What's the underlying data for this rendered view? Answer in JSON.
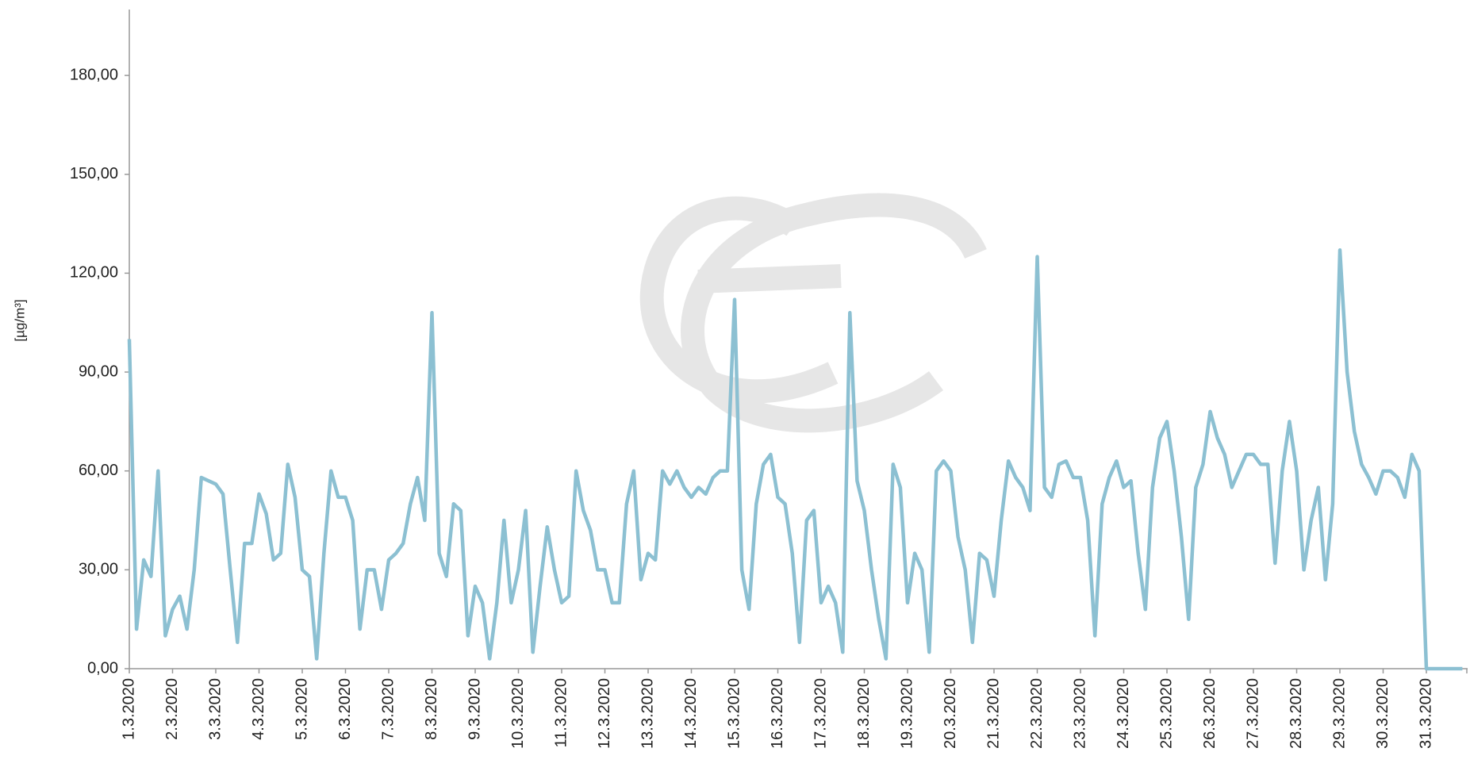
{
  "chart_data": {
    "type": "line",
    "y_label": "[µg/m³]",
    "categories": [
      "1.3.2020",
      null,
      null,
      null,
      null,
      null,
      "2.3.2020",
      null,
      null,
      null,
      null,
      null,
      "3.3.2020",
      null,
      null,
      null,
      null,
      null,
      "4.3.2020",
      null,
      null,
      null,
      null,
      null,
      "5.3.2020",
      null,
      null,
      null,
      null,
      null,
      "6.3.2020",
      null,
      null,
      null,
      null,
      null,
      "7.3.2020",
      null,
      null,
      null,
      null,
      null,
      "8.3.2020",
      null,
      null,
      null,
      null,
      null,
      "9.3.2020",
      null,
      null,
      null,
      null,
      null,
      "10.3.2020",
      null,
      null,
      null,
      null,
      null,
      "11.3.2020",
      null,
      null,
      null,
      null,
      null,
      "12.3.2020",
      null,
      null,
      null,
      null,
      null,
      "13.3.2020",
      null,
      null,
      null,
      null,
      null,
      "14.3.2020",
      null,
      null,
      null,
      null,
      null,
      "15.3.2020",
      null,
      null,
      null,
      null,
      null,
      "16.3.2020",
      null,
      null,
      null,
      null,
      null,
      "17.3.2020",
      null,
      null,
      null,
      null,
      null,
      "18.3.2020",
      null,
      null,
      null,
      null,
      null,
      "19.3.2020",
      null,
      null,
      null,
      null,
      null,
      "20.3.2020",
      null,
      null,
      null,
      null,
      null,
      "21.3.2020",
      null,
      null,
      null,
      null,
      null,
      "22.3.2020",
      null,
      null,
      null,
      null,
      null,
      "23.3.2020",
      null,
      null,
      null,
      null,
      null,
      "24.3.2020",
      null,
      null,
      null,
      null,
      null,
      "25.3.2020",
      null,
      null,
      null,
      null,
      null,
      "26.3.2020",
      null,
      null,
      null,
      null,
      null,
      "27.3.2020",
      null,
      null,
      null,
      null,
      null,
      "28.3.2020",
      null,
      null,
      null,
      null,
      null,
      "29.3.2020",
      null,
      null,
      null,
      null,
      null,
      "30.3.2020",
      null,
      null,
      null,
      null,
      null,
      "31.3.2020",
      null,
      null,
      null,
      null,
      null
    ],
    "series": [
      {
        "color": "#8cc0d2",
        "values": [
          100,
          12,
          33,
          28,
          60,
          10,
          18,
          22,
          12,
          30,
          58,
          57,
          56,
          53,
          30,
          8,
          38,
          38,
          53,
          47,
          33,
          35,
          62,
          52,
          30,
          28,
          3,
          35,
          60,
          52,
          52,
          45,
          12,
          30,
          30,
          18,
          33,
          35,
          38,
          50,
          58,
          45,
          108,
          35,
          28,
          50,
          48,
          10,
          25,
          20,
          3,
          20,
          45,
          20,
          30,
          48,
          5,
          25,
          43,
          30,
          20,
          22,
          60,
          48,
          42,
          30,
          30,
          20,
          20,
          50,
          60,
          27,
          35,
          33,
          60,
          56,
          60,
          55,
          52,
          55,
          53,
          58,
          60,
          60,
          112,
          30,
          18,
          50,
          62,
          65,
          52,
          50,
          35,
          8,
          45,
          48,
          20,
          25,
          20,
          5,
          108,
          57,
          48,
          30,
          15,
          3,
          62,
          55,
          20,
          35,
          30,
          5,
          60,
          63,
          60,
          40,
          30,
          8,
          35,
          33,
          22,
          45,
          63,
          58,
          55,
          48,
          125,
          55,
          52,
          62,
          63,
          58,
          58,
          45,
          10,
          50,
          58,
          63,
          55,
          57,
          35,
          18,
          55,
          70,
          75,
          60,
          40,
          15,
          55,
          62,
          78,
          70,
          65,
          55,
          60,
          65,
          65,
          62,
          62,
          32,
          60,
          75,
          60,
          30,
          45,
          55,
          27,
          50,
          127,
          90,
          72,
          62,
          58,
          53,
          60,
          60,
          58,
          52,
          65,
          60,
          0,
          0,
          0,
          0,
          0,
          0
        ]
      }
    ],
    "ylim": [
      0,
      200
    ],
    "yticks": [
      {
        "value": 0,
        "label": "0,00"
      },
      {
        "value": 30,
        "label": "30,00"
      },
      {
        "value": 60,
        "label": "60,00"
      },
      {
        "value": 90,
        "label": "90,00"
      },
      {
        "value": 120,
        "label": "120,00"
      },
      {
        "value": 150,
        "label": "150,00"
      },
      {
        "value": 180,
        "label": "180,00"
      }
    ],
    "grid": false
  }
}
